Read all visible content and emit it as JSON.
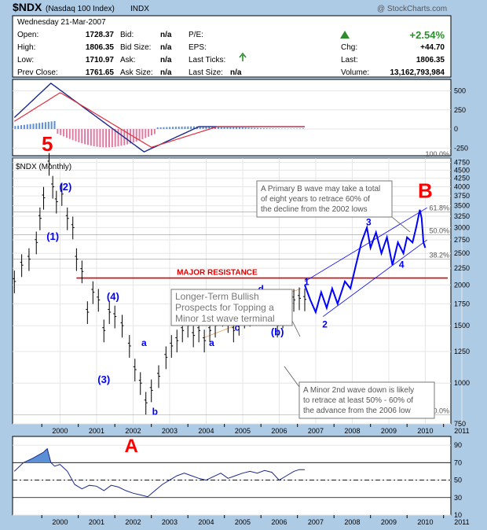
{
  "header": {
    "symbol": "$NDX",
    "name": "(Nasdaq 100 Index)",
    "exchange": "INDX",
    "credit": "@ StockCharts.com",
    "date": "Wednesday  21-Mar-2007",
    "quote": {
      "open_label": "Open:",
      "open": "1728.37",
      "high_label": "High:",
      "high": "1806.35",
      "low_label": "Low:",
      "low": "1710.97",
      "prev_label": "Prev Close:",
      "prev": "1761.65",
      "bid_label": "Bid:",
      "bid": "n/a",
      "bidsize_label": "Bid Size:",
      "bidsize": "n/a",
      "ask_label": "Ask:",
      "ask": "n/a",
      "asksize_label": "Ask Size:",
      "asksize": "n/a",
      "pe_label": "P/E:",
      "eps_label": "EPS:",
      "ticks_label": "Last Ticks:",
      "lastsize_label": "Last Size:",
      "lastsize": "n/a",
      "pct": "+2.54%",
      "chg_label": "Chg:",
      "chg": "+44.70",
      "last_label": "Last:",
      "last": "1806.35",
      "vol_label": "Volume:",
      "vol": "13,162,793,984"
    }
  },
  "colors": {
    "background": "#aecbe6",
    "up": "#2e8b2e",
    "wave": "#0000ff",
    "red": "#ff0000",
    "resistance": "#dd0000",
    "macd_pos": "#5b8fd6",
    "macd_neg": "#e07aa0"
  },
  "chart_data": [
    {
      "type": "bar",
      "name": "MACD",
      "yticks": [
        "500",
        "250",
        "0",
        "-250"
      ],
      "ylim": [
        -350,
        650
      ],
      "zero_y": 0
    },
    {
      "type": "line",
      "title": "$NDX (Monthly)",
      "scale": "log",
      "ylim": [
        750,
        4900
      ],
      "yticks": [
        750,
        1000,
        1250,
        1500,
        1750,
        2000,
        2250,
        2500,
        2750,
        3000,
        3250,
        3500,
        3750,
        4000,
        4250,
        4500,
        4750
      ],
      "xticks": [
        "2000",
        "2001",
        "2002",
        "2003",
        "2004",
        "2005",
        "2006",
        "2007",
        "2008",
        "2009",
        "2010",
        "2011"
      ],
      "x_range": [
        1999.2,
        2011.2
      ],
      "price": [
        [
          1999.25,
          2050
        ],
        [
          1999.45,
          2300
        ],
        [
          1999.65,
          2400
        ],
        [
          1999.85,
          2700
        ],
        [
          1999.95,
          3200
        ],
        [
          2000.05,
          3700
        ],
        [
          2000.2,
          4700
        ],
        [
          2000.3,
          4000
        ],
        [
          2000.4,
          3600
        ],
        [
          2000.55,
          3800
        ],
        [
          2000.7,
          3200
        ],
        [
          2000.85,
          3000
        ],
        [
          2000.95,
          2400
        ],
        [
          2001.1,
          2200
        ],
        [
          2001.25,
          1650
        ],
        [
          2001.4,
          1900
        ],
        [
          2001.55,
          1800
        ],
        [
          2001.7,
          1450
        ],
        [
          2001.85,
          1650
        ],
        [
          2002.0,
          1600
        ],
        [
          2002.2,
          1500
        ],
        [
          2002.4,
          1300
        ],
        [
          2002.55,
          1100
        ],
        [
          2002.7,
          1000
        ],
        [
          2002.85,
          870
        ],
        [
          2003.0,
          950
        ],
        [
          2003.2,
          1050
        ],
        [
          2003.4,
          1200
        ],
        [
          2003.55,
          1300
        ],
        [
          2003.7,
          1350
        ],
        [
          2003.85,
          1450
        ],
        [
          2004.0,
          1500
        ],
        [
          2004.15,
          1400
        ],
        [
          2004.3,
          1450
        ],
        [
          2004.45,
          1350
        ],
        [
          2004.6,
          1450
        ],
        [
          2004.75,
          1500
        ],
        [
          2004.95,
          1620
        ],
        [
          2005.1,
          1550
        ],
        [
          2005.25,
          1450
        ],
        [
          2005.4,
          1520
        ],
        [
          2005.55,
          1600
        ],
        [
          2005.7,
          1620
        ],
        [
          2005.85,
          1650
        ],
        [
          2006.0,
          1700
        ],
        [
          2006.15,
          1720
        ],
        [
          2006.3,
          1650
        ],
        [
          2006.45,
          1500
        ],
        [
          2006.6,
          1600
        ],
        [
          2006.75,
          1750
        ],
        [
          2006.9,
          1800
        ],
        [
          2007.05,
          1820
        ],
        [
          2007.2,
          1806
        ]
      ],
      "projection": [
        [
          2007.2,
          2000
        ],
        [
          2007.35,
          1800
        ],
        [
          2007.5,
          1650
        ],
        [
          2007.65,
          1900
        ],
        [
          2007.8,
          1700
        ],
        [
          2007.95,
          1950
        ],
        [
          2008.1,
          1750
        ],
        [
          2008.3,
          2050
        ],
        [
          2008.45,
          1950
        ],
        [
          2008.6,
          2300
        ],
        [
          2008.75,
          2700
        ],
        [
          2008.9,
          3000
        ],
        [
          2009.0,
          2600
        ],
        [
          2009.15,
          2900
        ],
        [
          2009.3,
          2500
        ],
        [
          2009.45,
          2800
        ],
        [
          2009.6,
          2300
        ],
        [
          2009.75,
          2700
        ],
        [
          2009.9,
          2500
        ],
        [
          2010.0,
          2800
        ],
        [
          2010.15,
          2700
        ],
        [
          2010.25,
          3000
        ],
        [
          2010.35,
          3400
        ],
        [
          2010.4,
          3200
        ],
        [
          2010.45,
          2700
        ],
        [
          2010.5,
          2600
        ]
      ],
      "resistance": 2100,
      "fib_levels": [
        {
          "label": "100.0%",
          "value": 4900
        },
        {
          "label": "61.8%",
          "value": 3350
        },
        {
          "label": "50.0%",
          "value": 2850
        },
        {
          "label": "38.2%",
          "value": 2400
        },
        {
          "label": "0.0%",
          "value": 800
        }
      ],
      "wave_labels": [
        {
          "text": "5",
          "x": 2000.15,
          "y": 5150,
          "color": "red"
        },
        {
          "text": "(2)",
          "x": 2000.65,
          "y": 3900,
          "color": "blue"
        },
        {
          "text": "(1)",
          "x": 2000.3,
          "y": 2750,
          "color": "blue"
        },
        {
          "text": "(4)",
          "x": 2001.95,
          "y": 1800,
          "color": "blue"
        },
        {
          "text": "(3)",
          "x": 2001.7,
          "y": 1000,
          "color": "blue"
        },
        {
          "text": "a",
          "x": 2002.8,
          "y": 1300,
          "color": "blue"
        },
        {
          "text": "b",
          "x": 2003.1,
          "y": 800,
          "color": "blue"
        },
        {
          "text": "(a)",
          "x": 2004.0,
          "y": 1720,
          "color": "blue"
        },
        {
          "text": "b",
          "x": 2004.95,
          "y": 1800,
          "color": "blue"
        },
        {
          "text": "a",
          "x": 2004.65,
          "y": 1300,
          "color": "blue"
        },
        {
          "text": "c",
          "x": 2005.35,
          "y": 1450,
          "color": "blue"
        },
        {
          "text": "d",
          "x": 2006.0,
          "y": 1900,
          "color": "blue"
        },
        {
          "text": "(b)",
          "x": 2006.45,
          "y": 1400,
          "color": "blue"
        },
        {
          "text": "1",
          "x": 2007.25,
          "y": 2000,
          "color": "blue"
        },
        {
          "text": "2",
          "x": 2007.75,
          "y": 1480,
          "color": "blue"
        },
        {
          "text": "3",
          "x": 2008.95,
          "y": 3050,
          "color": "blue"
        },
        {
          "text": "4",
          "x": 2009.85,
          "y": 2260,
          "color": "blue"
        },
        {
          "text": "B",
          "x": 2010.5,
          "y": 3700,
          "color": "red"
        }
      ],
      "resistance_label": "MAJOR RESISTANCE",
      "annotations": [
        {
          "id": "note1",
          "lines": [
            "A Primary B wave may take a total",
            "of eight years to retrace 60% of",
            "the decline from the 2002 lows"
          ]
        },
        {
          "id": "note2",
          "lines": [
            "Longer-Term Bullish",
            "Prospects for Topping  a",
            "Minor  1st wave terminal"
          ]
        },
        {
          "id": "note3",
          "lines": [
            "A Minor 2nd wave down is likely",
            "to retrace at least 50% - 60% of",
            "the advance from the 2006 low"
          ]
        }
      ]
    },
    {
      "type": "line",
      "name": "RSI",
      "ylim": [
        10,
        100
      ],
      "yticks": [
        "90",
        "70",
        "50",
        "30",
        "10"
      ],
      "label": "A",
      "series": [
        [
          1999.25,
          60
        ],
        [
          1999.5,
          70
        ],
        [
          1999.75,
          75
        ],
        [
          2000.05,
          82
        ],
        [
          2000.15,
          86
        ],
        [
          2000.25,
          70
        ],
        [
          2000.35,
          66
        ],
        [
          2000.5,
          68
        ],
        [
          2000.7,
          60
        ],
        [
          2000.9,
          45
        ],
        [
          2001.1,
          40
        ],
        [
          2001.3,
          44
        ],
        [
          2001.5,
          43
        ],
        [
          2001.7,
          38
        ],
        [
          2001.9,
          44
        ],
        [
          2002.1,
          42
        ],
        [
          2002.3,
          38
        ],
        [
          2002.5,
          35
        ],
        [
          2002.7,
          33
        ],
        [
          2002.9,
          31
        ],
        [
          2003.1,
          38
        ],
        [
          2003.3,
          45
        ],
        [
          2003.5,
          50
        ],
        [
          2003.7,
          55
        ],
        [
          2003.9,
          58
        ],
        [
          2004.1,
          55
        ],
        [
          2004.3,
          52
        ],
        [
          2004.5,
          50
        ],
        [
          2004.7,
          54
        ],
        [
          2004.9,
          58
        ],
        [
          2005.1,
          52
        ],
        [
          2005.3,
          55
        ],
        [
          2005.5,
          58
        ],
        [
          2005.7,
          60
        ],
        [
          2005.9,
          58
        ],
        [
          2006.1,
          61
        ],
        [
          2006.3,
          59
        ],
        [
          2006.5,
          50
        ],
        [
          2006.7,
          55
        ],
        [
          2006.9,
          60
        ],
        [
          2007.05,
          62
        ],
        [
          2007.2,
          62
        ]
      ]
    }
  ]
}
